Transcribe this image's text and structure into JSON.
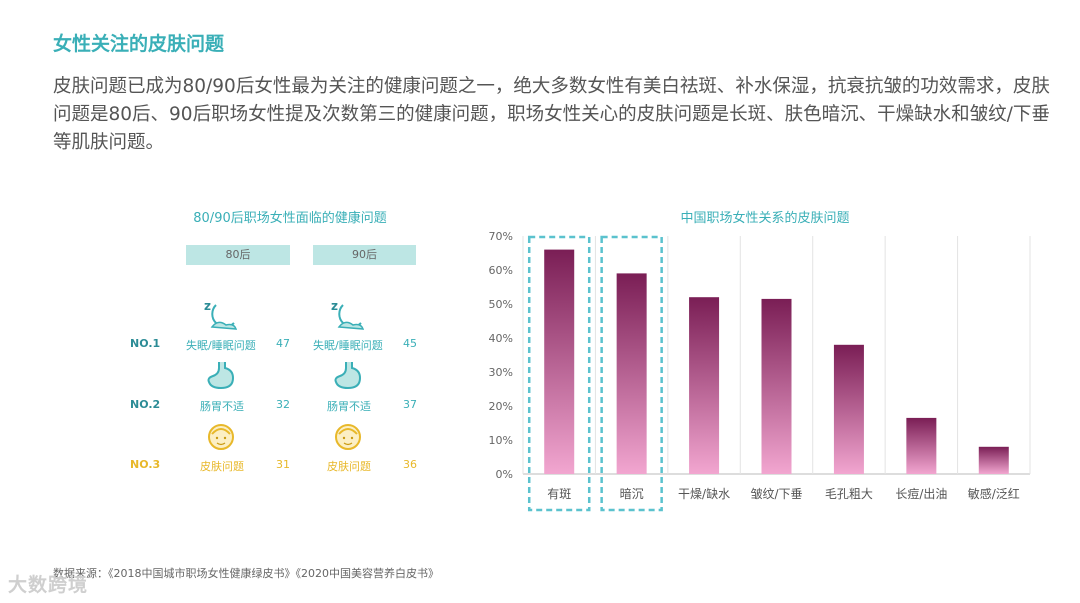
{
  "page": {
    "title": "女性关注的皮肤问题",
    "intro": "皮肤问题已成为80/90后女性最为关注的健康问题之一，绝大多数女性有美白祛斑、补水保湿，抗衰抗皱的功效需求，皮肤问题是80后、90后职场女性提及次数第三的健康问题，职场女性关心的皮肤问题是长斑、肤色暗沉、干燥缺水和皱纹/下垂等肌肤问题。",
    "source": "数据来源：《2018中国城市职场女性健康绿皮书》《2020中国美容营养白皮书》",
    "logo": "大数跨境"
  },
  "left_panel": {
    "title": "80/90后职场女性面临的健康问题",
    "col80": "80后",
    "col90": "90后",
    "ranks": [
      {
        "rank": "NO.1",
        "label": "失眠/睡眠问题",
        "v80": "47",
        "v90": "45",
        "color": "#3AAFB7",
        "icon": "sleep-moon-icon"
      },
      {
        "rank": "NO.2",
        "label": "肠胃不适",
        "v80": "32",
        "v90": "37",
        "color": "#3AAFB7",
        "icon": "stomach-icon"
      },
      {
        "rank": "NO.3",
        "label": "皮肤问题",
        "v80": "31",
        "v90": "36",
        "color": "#E8B82A",
        "icon": "face-icon"
      }
    ]
  },
  "chart_data": {
    "type": "bar",
    "title": "中国职场女性关系的皮肤问题",
    "categories": [
      "有斑",
      "暗沉",
      "干燥/缺水",
      "皱纹/下垂",
      "毛孔粗大",
      "长痘/出油",
      "敏感/泛红"
    ],
    "values": [
      66,
      59,
      52,
      51.5,
      38,
      16.5,
      8
    ],
    "ylim": [
      0,
      70
    ],
    "yticks": [
      0,
      10,
      20,
      30,
      40,
      50,
      60,
      70
    ],
    "ytick_labels": [
      "0%",
      "10%",
      "20%",
      "30%",
      "40%",
      "50%",
      "60%",
      "70%"
    ],
    "highlighted": [
      "有斑",
      "暗沉"
    ],
    "bar_color_top": "#7A1E55",
    "bar_color_bottom": "#F2A6D0",
    "highlight_color": "#5BC2CE"
  }
}
